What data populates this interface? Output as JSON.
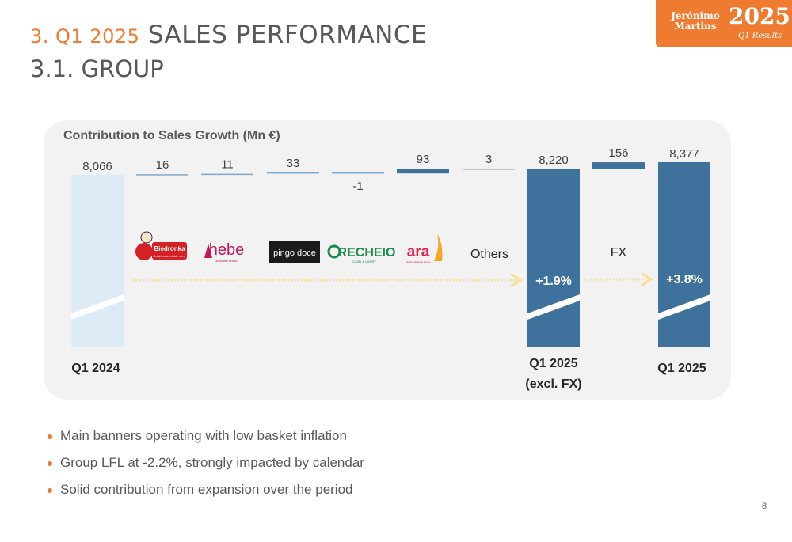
{
  "header": {
    "title_number": "3. Q1 2025",
    "title_text": "SALES PERFORMANCE",
    "subtitle": "3.1. GROUP"
  },
  "logo": {
    "name_line1": "Jerónimo",
    "name_line2": "Martins",
    "year": "2025",
    "sub": "Q1 Results"
  },
  "colors": {
    "orange": "#EE7B2F",
    "bar_dark": "#3E729C",
    "bar_light": "#DDEBF7",
    "arrow": "#F7E09A",
    "panel": "#F2F2F2"
  },
  "chart_data": {
    "type": "bar",
    "title": "Contribution to Sales Growth (Mn €)",
    "categories": [
      "Q1 2024",
      "Biedronka",
      "Hebe",
      "Pingo Doce",
      "Recheio",
      "Ara",
      "Others",
      "Q1 2025 (excl. FX)",
      "FX",
      "Q1 2025"
    ],
    "values": [
      8066,
      16,
      11,
      33,
      -1,
      93,
      3,
      8220,
      156,
      8377
    ],
    "value_labels": [
      "8,066",
      "16",
      "11",
      "33",
      "-1",
      "93",
      "3",
      "8,220",
      "156",
      "8,377"
    ],
    "kinds": [
      "total",
      "delta",
      "delta",
      "delta",
      "delta",
      "delta",
      "delta",
      "total",
      "delta",
      "total"
    ],
    "x_labels": [
      "Q1 2024",
      "",
      "",
      "",
      "",
      "",
      "Others",
      "Q1 2025\n(excl. FX)",
      "FX",
      "Q1 2025"
    ],
    "growth_labels": [
      "+1.9%",
      "+3.8%"
    ],
    "banner_logos": [
      {
        "name": "biedronka-logo",
        "text": "Biedronka",
        "sub": "Codziennie niskie ceny"
      },
      {
        "name": "hebe-logo",
        "text": "hebe",
        "sub": "zdrowie i uroda"
      },
      {
        "name": "pingo-doce-logo",
        "text": "pingo doce"
      },
      {
        "name": "recheio-logo",
        "text": "RECHEIO",
        "sub": "CASH & CARRY"
      },
      {
        "name": "ara-logo",
        "text": "ara",
        "sub": "Alegria de llegar ahorro"
      }
    ]
  },
  "bullets": [
    "Main banners operating with low basket inflation",
    "Group LFL at -2.2%, strongly impacted by calendar",
    "Solid contribution from expansion over the period"
  ],
  "page_number": "8"
}
